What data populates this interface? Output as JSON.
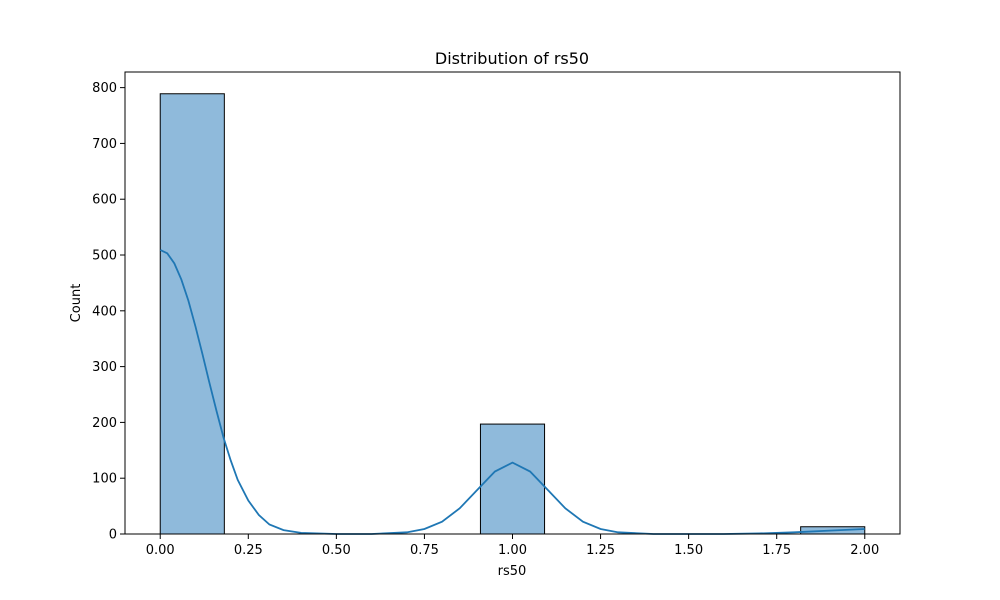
{
  "chart_data": {
    "type": "bar",
    "title": "Distribution of rs50",
    "xlabel": "rs50",
    "ylabel": "Count",
    "xlim": [
      -0.1,
      2.1
    ],
    "ylim": [
      0,
      828
    ],
    "x_ticks": [
      0.0,
      0.25,
      0.5,
      0.75,
      1.0,
      1.25,
      1.5,
      1.75,
      2.0
    ],
    "x_tick_labels": [
      "0.00",
      "0.25",
      "0.50",
      "0.75",
      "1.00",
      "1.25",
      "1.50",
      "1.75",
      "2.00"
    ],
    "y_ticks": [
      0,
      100,
      200,
      300,
      400,
      500,
      600,
      700,
      800
    ],
    "y_tick_labels": [
      "0",
      "100",
      "200",
      "300",
      "400",
      "500",
      "600",
      "700",
      "800"
    ],
    "bins": [
      {
        "x0": 0.0,
        "x1": 0.182,
        "count": 789
      },
      {
        "x0": 0.909,
        "x1": 1.091,
        "count": 197
      },
      {
        "x0": 1.818,
        "x1": 2.0,
        "count": 13
      }
    ],
    "kde_points": [
      [
        0.0,
        509
      ],
      [
        0.02,
        503
      ],
      [
        0.04,
        485
      ],
      [
        0.06,
        456
      ],
      [
        0.08,
        418
      ],
      [
        0.1,
        372
      ],
      [
        0.12,
        322
      ],
      [
        0.14,
        270
      ],
      [
        0.16,
        220
      ],
      [
        0.18,
        172
      ],
      [
        0.2,
        132
      ],
      [
        0.22,
        97
      ],
      [
        0.25,
        60
      ],
      [
        0.28,
        34
      ],
      [
        0.31,
        17
      ],
      [
        0.35,
        7
      ],
      [
        0.4,
        2
      ],
      [
        0.5,
        0
      ],
      [
        0.6,
        0
      ],
      [
        0.7,
        3
      ],
      [
        0.75,
        9
      ],
      [
        0.8,
        22
      ],
      [
        0.85,
        46
      ],
      [
        0.9,
        79
      ],
      [
        0.95,
        112
      ],
      [
        1.0,
        128
      ],
      [
        1.05,
        112
      ],
      [
        1.1,
        79
      ],
      [
        1.15,
        46
      ],
      [
        1.2,
        22
      ],
      [
        1.25,
        9
      ],
      [
        1.3,
        3
      ],
      [
        1.4,
        0
      ],
      [
        1.5,
        0
      ],
      [
        1.6,
        0
      ],
      [
        1.7,
        1
      ],
      [
        1.8,
        3
      ],
      [
        1.9,
        6
      ],
      [
        2.0,
        9
      ]
    ],
    "bar_fill": "#8fbadb",
    "bar_edge": "#000000",
    "kde_color": "#1f77b4",
    "grid": false,
    "legend": "none"
  }
}
